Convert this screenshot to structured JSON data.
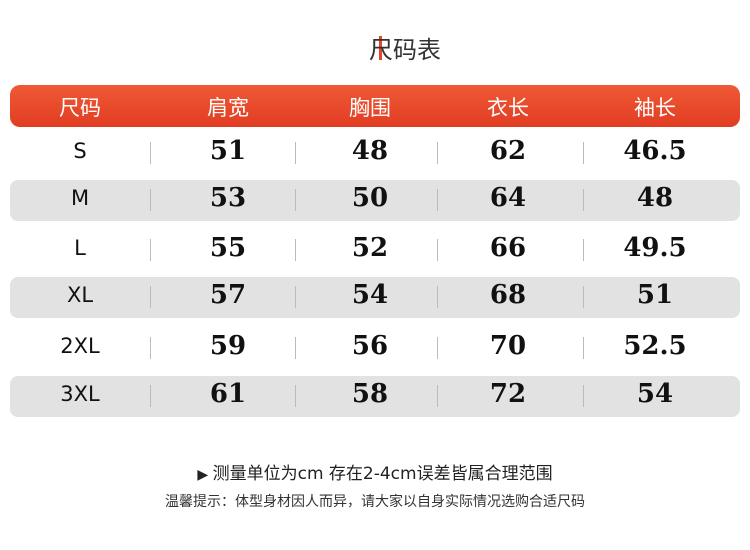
{
  "title": "尺码表",
  "table": {
    "header": [
      "尺码",
      "肩宽",
      "胸围",
      "衣长",
      "袖长"
    ],
    "rows": [
      [
        "S",
        51,
        48,
        62,
        46.5
      ],
      [
        "M",
        53,
        50,
        64,
        48
      ],
      [
        "L",
        55,
        52,
        66,
        49.5
      ],
      [
        "XL",
        57,
        54,
        68,
        51
      ],
      [
        "2XL",
        59,
        56,
        70,
        52.5
      ],
      [
        "3XL",
        61,
        58,
        72,
        54
      ]
    ]
  },
  "notes": [
    "测量单位为cm  存在2-4cm误差皆属合理范围",
    "温馨提示：体型身材因人而异，请大家以自身实际情况选购合适尺码"
  ]
}
